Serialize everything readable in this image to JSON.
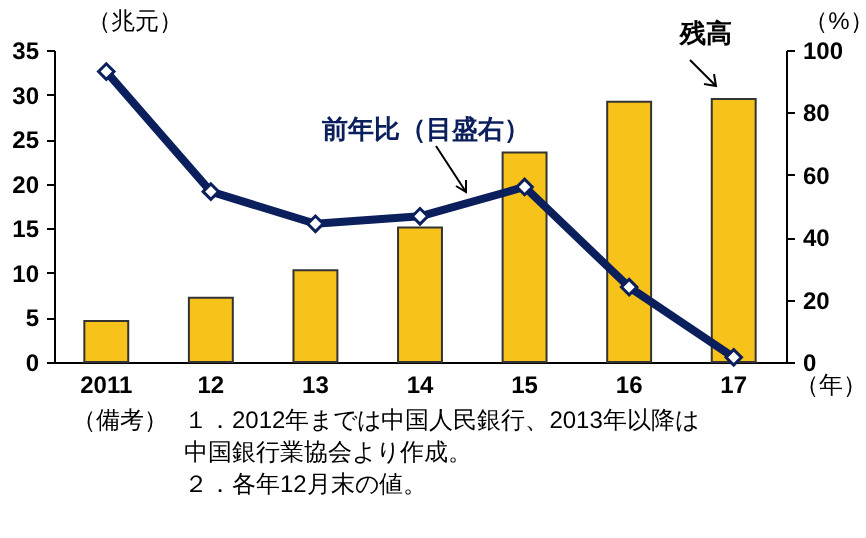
{
  "chart_data": {
    "type": "bar",
    "categories": [
      "2011",
      "12",
      "13",
      "14",
      "15",
      "16",
      "17"
    ],
    "ylabel": "（兆元）",
    "y2label": "（%）",
    "xlabel": "（年）",
    "ylim": [
      0,
      35
    ],
    "yticks": [
      0,
      5,
      10,
      15,
      20,
      25,
      30,
      35
    ],
    "y2lim": [
      0,
      100
    ],
    "y2ticks": [
      0,
      20,
      40,
      60,
      80,
      100
    ],
    "series": [
      {
        "name": "残高",
        "color": "#f7c21a",
        "values": [
          4.6,
          7.2,
          10.3,
          15.1,
          23.5,
          29.2,
          29.5
        ]
      },
      {
        "name": "前年比（目盛右）",
        "type": "line",
        "axis": "y2",
        "color": "#0a1f5c",
        "marker": "diamond",
        "values": [
          93.1,
          54.6,
          44.3,
          46.7,
          56.1,
          24.0,
          1.5
        ]
      }
    ],
    "grid": false,
    "annotations": [
      "（備考）",
      "１．2012年までは中国人民銀行、2013年以降は中国銀行業協会より作成。",
      "２．各年12月末の値。"
    ]
  }
}
